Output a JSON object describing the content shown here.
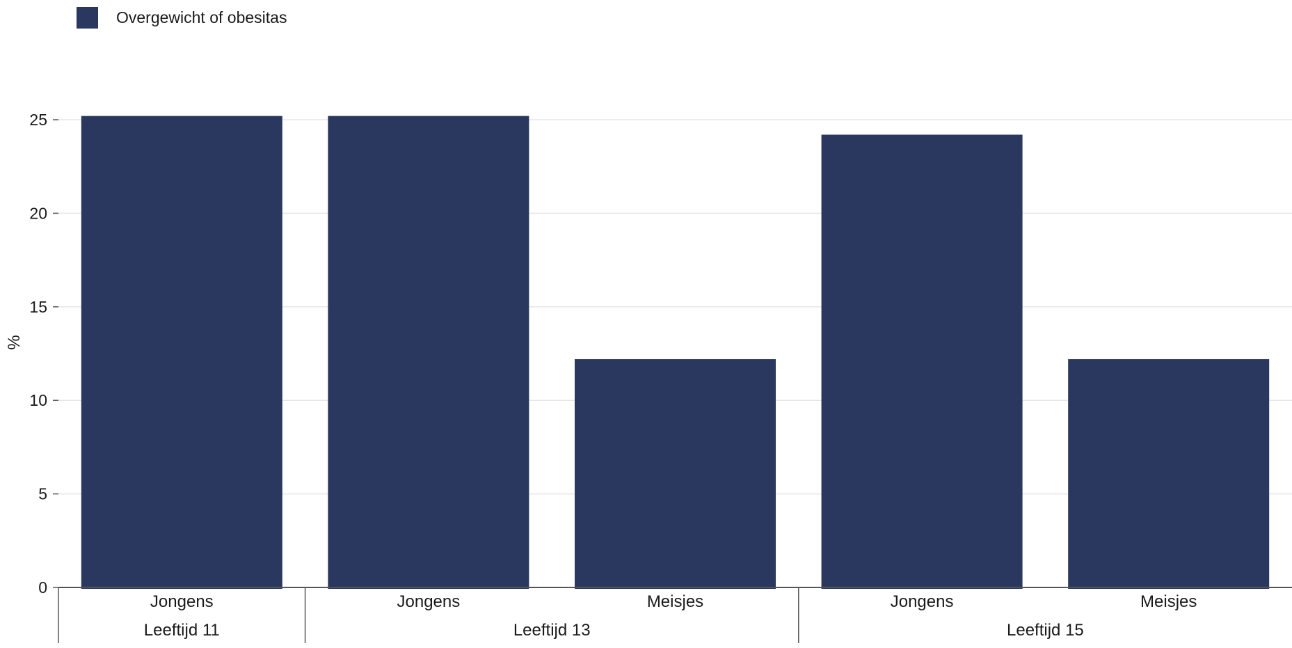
{
  "legend": {
    "label": "Overgewicht of obesitas",
    "color": "#2a375f"
  },
  "chart_data": {
    "type": "bar",
    "ylabel": "%",
    "ylim": [
      0,
      25
    ],
    "yticks": [
      0,
      5,
      10,
      15,
      20,
      25
    ],
    "grid": true,
    "legend_position": "top-left",
    "bar_color": "#2a375f",
    "groups": [
      {
        "label": "Leeftijd 11",
        "categories": [
          "Jongens"
        ],
        "values": [
          25.2
        ]
      },
      {
        "label": "Leeftijd 13",
        "categories": [
          "Jongens",
          "Meisjes"
        ],
        "values": [
          25.2,
          12.2
        ]
      },
      {
        "label": "Leeftijd 15",
        "categories": [
          "Jongens",
          "Meisjes"
        ],
        "values": [
          24.2,
          12.2
        ]
      }
    ],
    "series": [
      {
        "name": "Overgewicht of obesitas",
        "values": [
          25.2,
          25.2,
          12.2,
          24.2,
          12.2
        ]
      }
    ]
  }
}
